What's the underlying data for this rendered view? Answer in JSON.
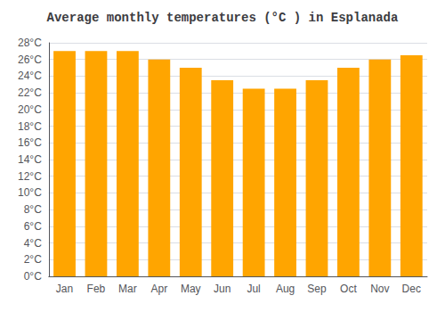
{
  "chart_data": {
    "type": "bar",
    "title": "Average monthly temperatures (°C ) in Esplanada",
    "categories": [
      "Jan",
      "Feb",
      "Mar",
      "Apr",
      "May",
      "Jun",
      "Jul",
      "Aug",
      "Sep",
      "Oct",
      "Nov",
      "Dec"
    ],
    "values": [
      27.0,
      27.0,
      27.0,
      26.0,
      25.0,
      23.5,
      22.5,
      22.5,
      23.5,
      25.0,
      26.0,
      26.5
    ],
    "color": "#FFA500",
    "ylim": [
      0,
      28
    ],
    "yticks": [
      {
        "value": 0,
        "label": "0°C"
      },
      {
        "value": 2,
        "label": "2°C"
      },
      {
        "value": 4,
        "label": "4°C"
      },
      {
        "value": 6,
        "label": "6°C"
      },
      {
        "value": 8,
        "label": "8°C"
      },
      {
        "value": 10,
        "label": "10°C"
      },
      {
        "value": 12,
        "label": "12°C"
      },
      {
        "value": 14,
        "label": "14°C"
      },
      {
        "value": 16,
        "label": "16°C"
      },
      {
        "value": 18,
        "label": "18°C"
      },
      {
        "value": 20,
        "label": "20°C"
      },
      {
        "value": 22,
        "label": "22°C"
      },
      {
        "value": 24,
        "label": "24°C"
      },
      {
        "value": 26,
        "label": "26°C"
      },
      {
        "value": 28,
        "label": "28°C"
      }
    ],
    "grid": true
  }
}
